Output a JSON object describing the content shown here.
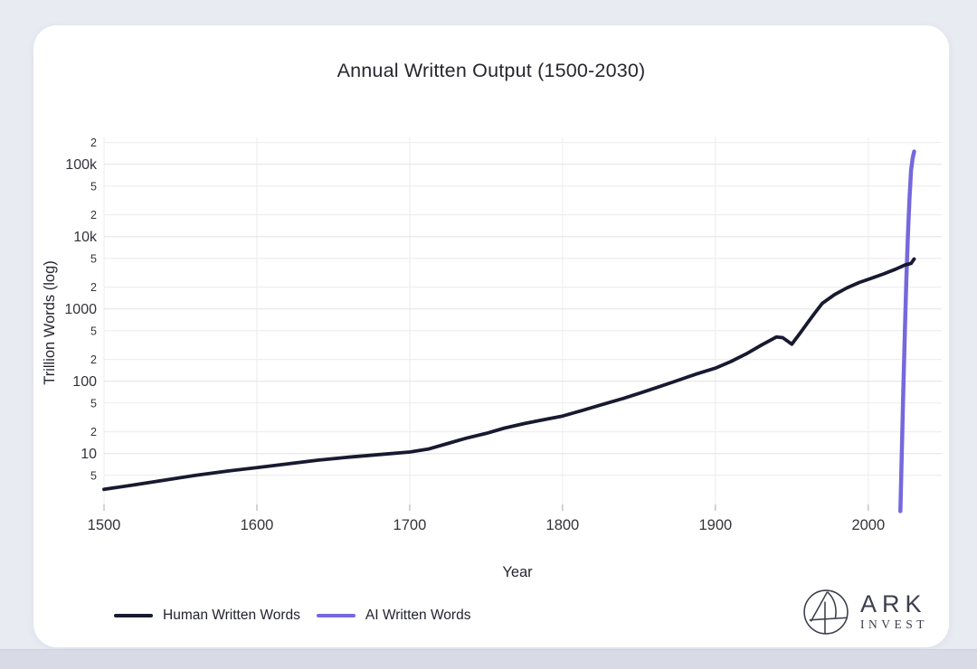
{
  "chart_data": {
    "type": "line",
    "title": "Annual Written Output (1500-2030)",
    "xlabel": "Year",
    "ylabel": "Trillion Words (log)",
    "y_scale": "log",
    "grid": true,
    "legend_position": "bottom-left",
    "xlim": [
      1500,
      2030
    ],
    "ylim_trillion_words": [
      1.5,
      200000
    ],
    "x_ticks": [
      1500,
      1600,
      1700,
      1800,
      1900,
      2000
    ],
    "y_ticks": [
      {
        "value": 200000,
        "label": "2",
        "major": false
      },
      {
        "value": 100000,
        "label": "100k",
        "major": true
      },
      {
        "value": 50000,
        "label": "5",
        "major": false
      },
      {
        "value": 20000,
        "label": "2",
        "major": false
      },
      {
        "value": 10000,
        "label": "10k",
        "major": true
      },
      {
        "value": 5000,
        "label": "5",
        "major": false
      },
      {
        "value": 2000,
        "label": "2",
        "major": false
      },
      {
        "value": 1000,
        "label": "1000",
        "major": true
      },
      {
        "value": 500,
        "label": "5",
        "major": false
      },
      {
        "value": 200,
        "label": "2",
        "major": false
      },
      {
        "value": 100,
        "label": "100",
        "major": true
      },
      {
        "value": 50,
        "label": "5",
        "major": false
      },
      {
        "value": 20,
        "label": "2",
        "major": false
      },
      {
        "value": 10,
        "label": "10",
        "major": true
      },
      {
        "value": 5,
        "label": "5",
        "major": false
      }
    ],
    "series": [
      {
        "name": "Human Written Words",
        "color": "#171a30",
        "width": 3.8,
        "points": [
          [
            1500,
            3.2
          ],
          [
            1520,
            3.7
          ],
          [
            1540,
            4.3
          ],
          [
            1560,
            5.0
          ],
          [
            1580,
            5.7
          ],
          [
            1600,
            6.4
          ],
          [
            1620,
            7.2
          ],
          [
            1640,
            8.1
          ],
          [
            1660,
            8.9
          ],
          [
            1680,
            9.7
          ],
          [
            1700,
            10.5
          ],
          [
            1712,
            11.5
          ],
          [
            1725,
            13.8
          ],
          [
            1737,
            16.3
          ],
          [
            1750,
            19
          ],
          [
            1762,
            22.5
          ],
          [
            1775,
            26
          ],
          [
            1788,
            29.5
          ],
          [
            1800,
            33
          ],
          [
            1812,
            39
          ],
          [
            1825,
            47
          ],
          [
            1840,
            58
          ],
          [
            1852,
            70
          ],
          [
            1864,
            85
          ],
          [
            1875,
            102
          ],
          [
            1888,
            127
          ],
          [
            1900,
            152
          ],
          [
            1910,
            187
          ],
          [
            1920,
            238
          ],
          [
            1930,
            315
          ],
          [
            1940,
            410
          ],
          [
            1944,
            400
          ],
          [
            1950,
            325
          ],
          [
            1955,
            450
          ],
          [
            1960,
            630
          ],
          [
            1965,
            875
          ],
          [
            1970,
            1200
          ],
          [
            1978,
            1580
          ],
          [
            1986,
            1950
          ],
          [
            1994,
            2320
          ],
          [
            2002,
            2650
          ],
          [
            2010,
            3050
          ],
          [
            2018,
            3550
          ],
          [
            2024,
            4050
          ],
          [
            2028,
            4250
          ],
          [
            2030,
            4900
          ]
        ]
      },
      {
        "name": "AI Written Words",
        "color": "#7668dd",
        "width": 4.5,
        "points": [
          [
            2021,
            1.6
          ],
          [
            2022,
            12
          ],
          [
            2023,
            90
          ],
          [
            2024,
            560
          ],
          [
            2025,
            2800
          ],
          [
            2026,
            11000
          ],
          [
            2027,
            34000
          ],
          [
            2028,
            82000
          ],
          [
            2029,
            120000
          ],
          [
            2030,
            150000
          ]
        ]
      }
    ]
  },
  "logo": {
    "line1": "ARK",
    "line2": "INVEST"
  }
}
